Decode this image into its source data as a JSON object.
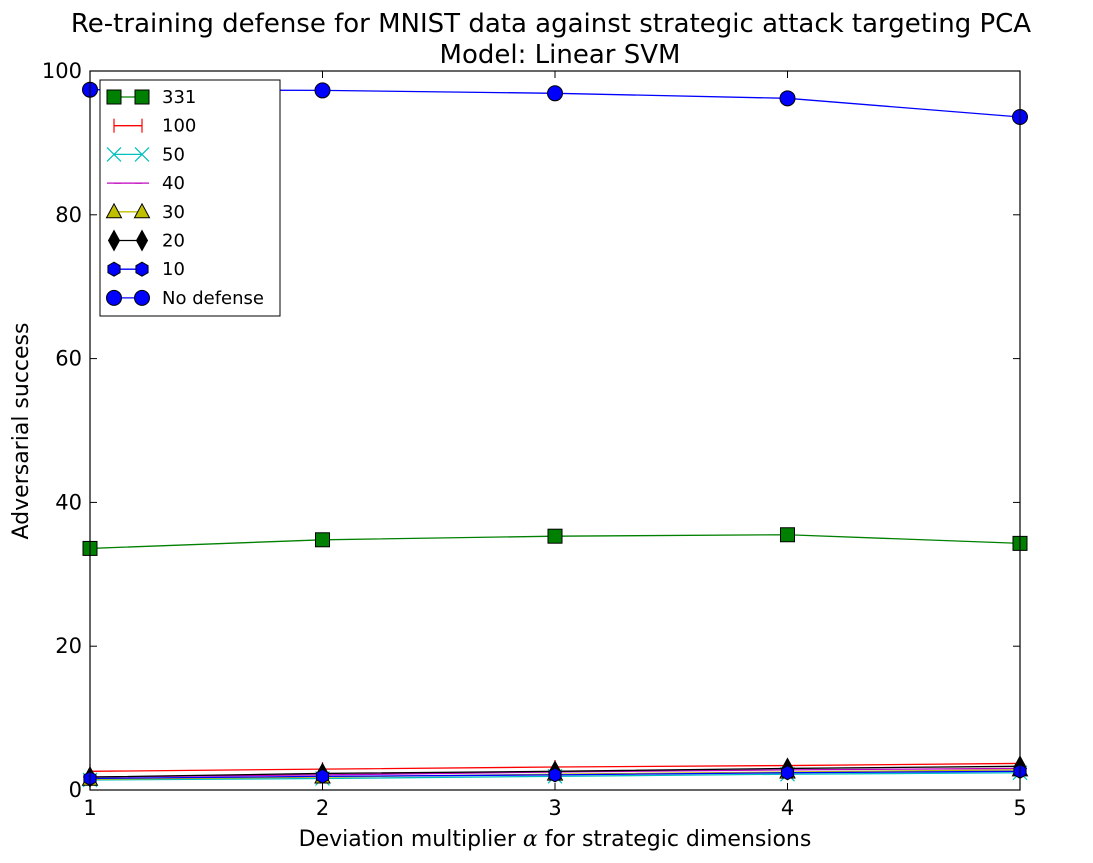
{
  "chart_data": {
    "type": "line",
    "title": "Re-training defense for MNIST data against strategic attack targeting PCA",
    "subtitle": "Model: Linear SVM",
    "xlabel_prefix": "Deviation multiplier ",
    "xlabel_symbol": "α",
    "xlabel_suffix": " for strategic dimensions",
    "ylabel": "Adversarial success",
    "x": [
      1,
      2,
      3,
      4,
      5
    ],
    "xlim": [
      1,
      5
    ],
    "ylim": [
      0,
      100
    ],
    "xticks": [
      "1",
      "2",
      "3",
      "4",
      "5"
    ],
    "yticks": [
      "0",
      "20",
      "40",
      "60",
      "80",
      "100"
    ],
    "grid": false,
    "legend_position": "top-left",
    "series": [
      {
        "name": "331",
        "color": "#008000",
        "marker": "square",
        "values": [
          33.6,
          34.8,
          35.3,
          35.5,
          34.3
        ]
      },
      {
        "name": "100",
        "color": "#ff0000",
        "marker": "vline",
        "values": [
          2.6,
          2.9,
          3.2,
          3.4,
          3.7
        ]
      },
      {
        "name": "50",
        "color": "#00bfbf",
        "marker": "x",
        "values": [
          1.4,
          1.6,
          1.9,
          2.2,
          2.4
        ]
      },
      {
        "name": "40",
        "color": "#bf00bf",
        "marker": "hline",
        "values": [
          1.8,
          2.1,
          2.5,
          2.8,
          3.0
        ]
      },
      {
        "name": "30",
        "color": "#bfbf00",
        "marker": "triangle",
        "values": [
          1.5,
          1.8,
          2.2,
          2.5,
          2.8
        ]
      },
      {
        "name": "20",
        "color": "#000000",
        "marker": "diamond",
        "values": [
          1.8,
          2.3,
          2.6,
          3.0,
          3.3
        ]
      },
      {
        "name": "10",
        "color": "#0000ff",
        "marker": "hexagon",
        "values": [
          1.6,
          1.9,
          2.1,
          2.4,
          2.6
        ]
      },
      {
        "name": "No defense",
        "color": "#0000ff",
        "marker": "circle",
        "values": [
          97.4,
          97.3,
          96.9,
          96.2,
          93.6
        ]
      }
    ]
  }
}
